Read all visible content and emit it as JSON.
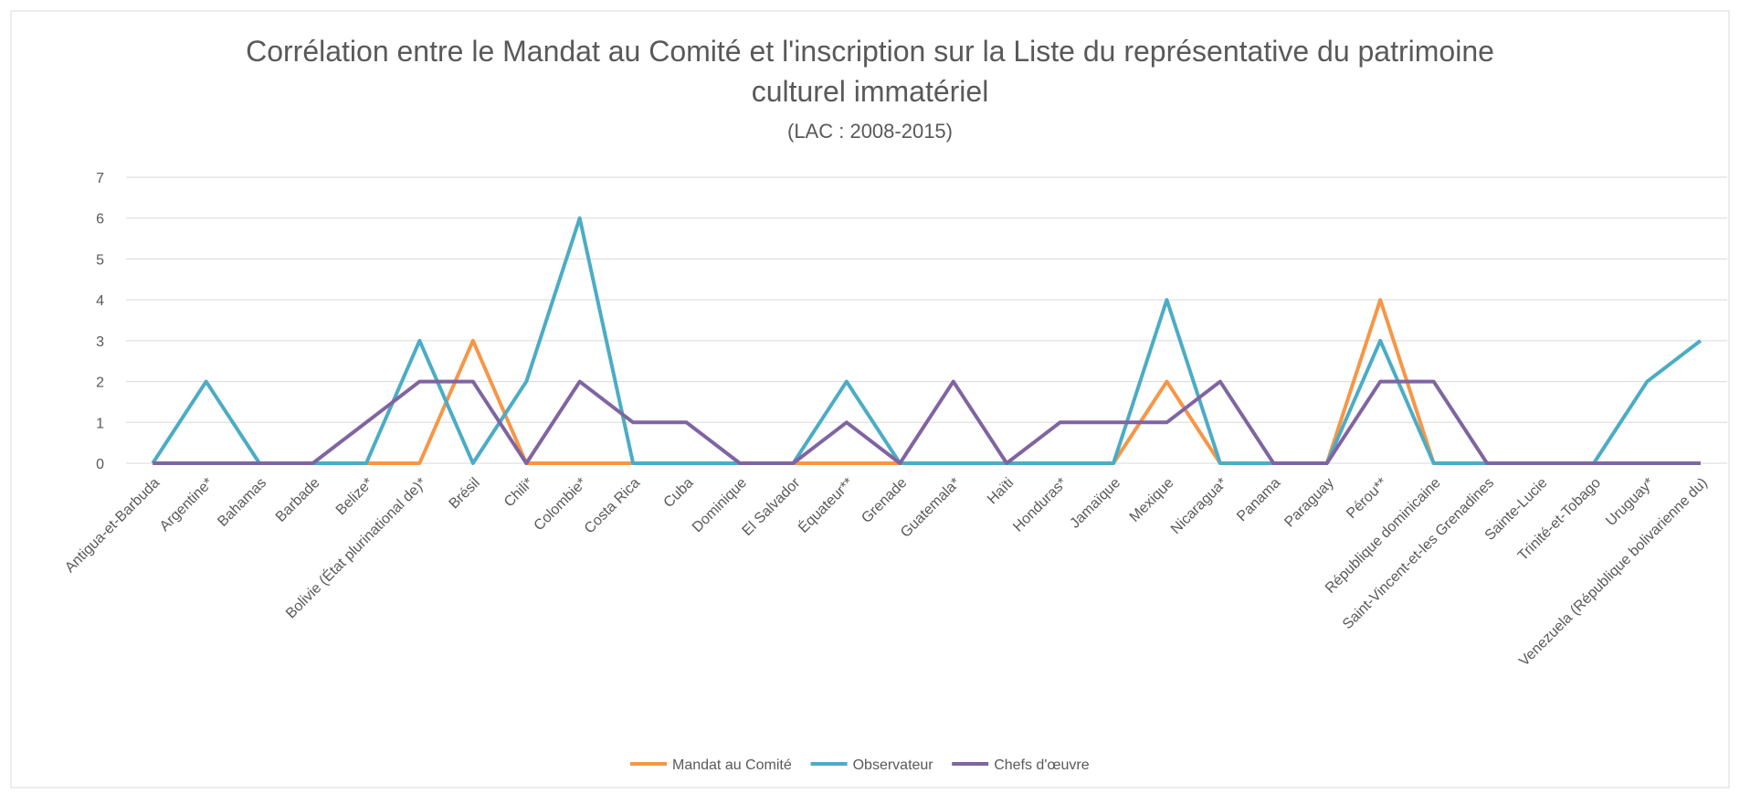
{
  "chart_data": {
    "type": "line",
    "title": "Corrélation entre le Mandat au Comité et l'inscription sur la Liste du représentative du patrimoine culturel immatériel",
    "subtitle": "(LAC : 2008-2015)",
    "categories": [
      "Antigua-et-Barbuda",
      "Argentine*",
      "Bahamas",
      "Barbade",
      "Belize*",
      "Bolivie (État plurinational de)*",
      "Brésil",
      "Chili*",
      "Colombie*",
      "Costa Rica",
      "Cuba",
      "Dominique",
      "El Salvador",
      "Équateur**",
      "Grenade",
      "Guatemala*",
      "Haïti",
      "Honduras*",
      "Jamaïque",
      "Mexique",
      "Nicaragua*",
      "Panama",
      "Paraguay",
      "Pérou**",
      "République dominicaine",
      "Saint-Vincent-et-les Grenadines",
      "Sainte-Lucie",
      "Trinité-et-Tobago",
      "Uruguay*",
      "Venezuela (République bolivarienne du)"
    ],
    "series": [
      {
        "name": "Mandat au Comité",
        "color": "#f79646",
        "values": [
          0,
          0,
          0,
          0,
          0,
          0,
          3,
          0,
          0,
          0,
          0,
          0,
          0,
          0,
          0,
          0,
          0,
          0,
          0,
          2,
          0,
          0,
          0,
          4,
          0,
          0,
          0,
          0,
          0,
          0
        ]
      },
      {
        "name": "Observateur",
        "color": "#4bacc6",
        "values": [
          0,
          2,
          0,
          0,
          0,
          3,
          0,
          2,
          6,
          0,
          0,
          0,
          0,
          2,
          0,
          0,
          0,
          0,
          0,
          4,
          0,
          0,
          0,
          3,
          0,
          0,
          0,
          0,
          2,
          3
        ]
      },
      {
        "name": "Chefs d'œuvre",
        "color": "#8064a2",
        "values": [
          0,
          0,
          0,
          0,
          1,
          2,
          2,
          0,
          2,
          1,
          1,
          0,
          0,
          1,
          0,
          2,
          0,
          1,
          1,
          1,
          2,
          0,
          0,
          2,
          2,
          0,
          0,
          0,
          0,
          0
        ]
      }
    ],
    "ylim": [
      0,
      7
    ],
    "yticks": [
      0,
      1,
      2,
      3,
      4,
      5,
      6,
      7
    ],
    "grid": true,
    "legend": "bottom"
  }
}
